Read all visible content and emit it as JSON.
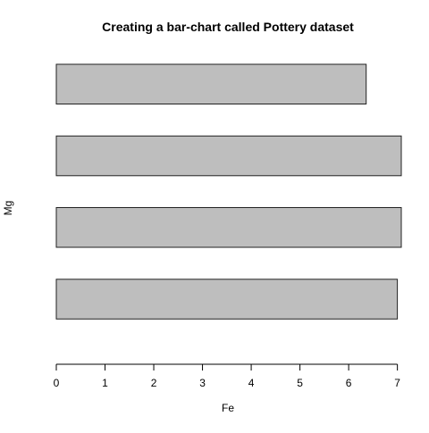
{
  "chart_data": {
    "type": "bar",
    "orientation": "horizontal",
    "title": "Creating a bar-chart called Pottery dataset",
    "xlabel": "Fe",
    "ylabel": "Mg",
    "values": [
      7.0,
      7.08,
      7.08,
      6.36
    ],
    "xlim": [
      0,
      7.08
    ],
    "ticks": [
      0,
      1,
      2,
      3,
      4,
      5,
      6,
      7
    ],
    "bar_color": "#bebebe",
    "grid": false,
    "legend": "none"
  }
}
